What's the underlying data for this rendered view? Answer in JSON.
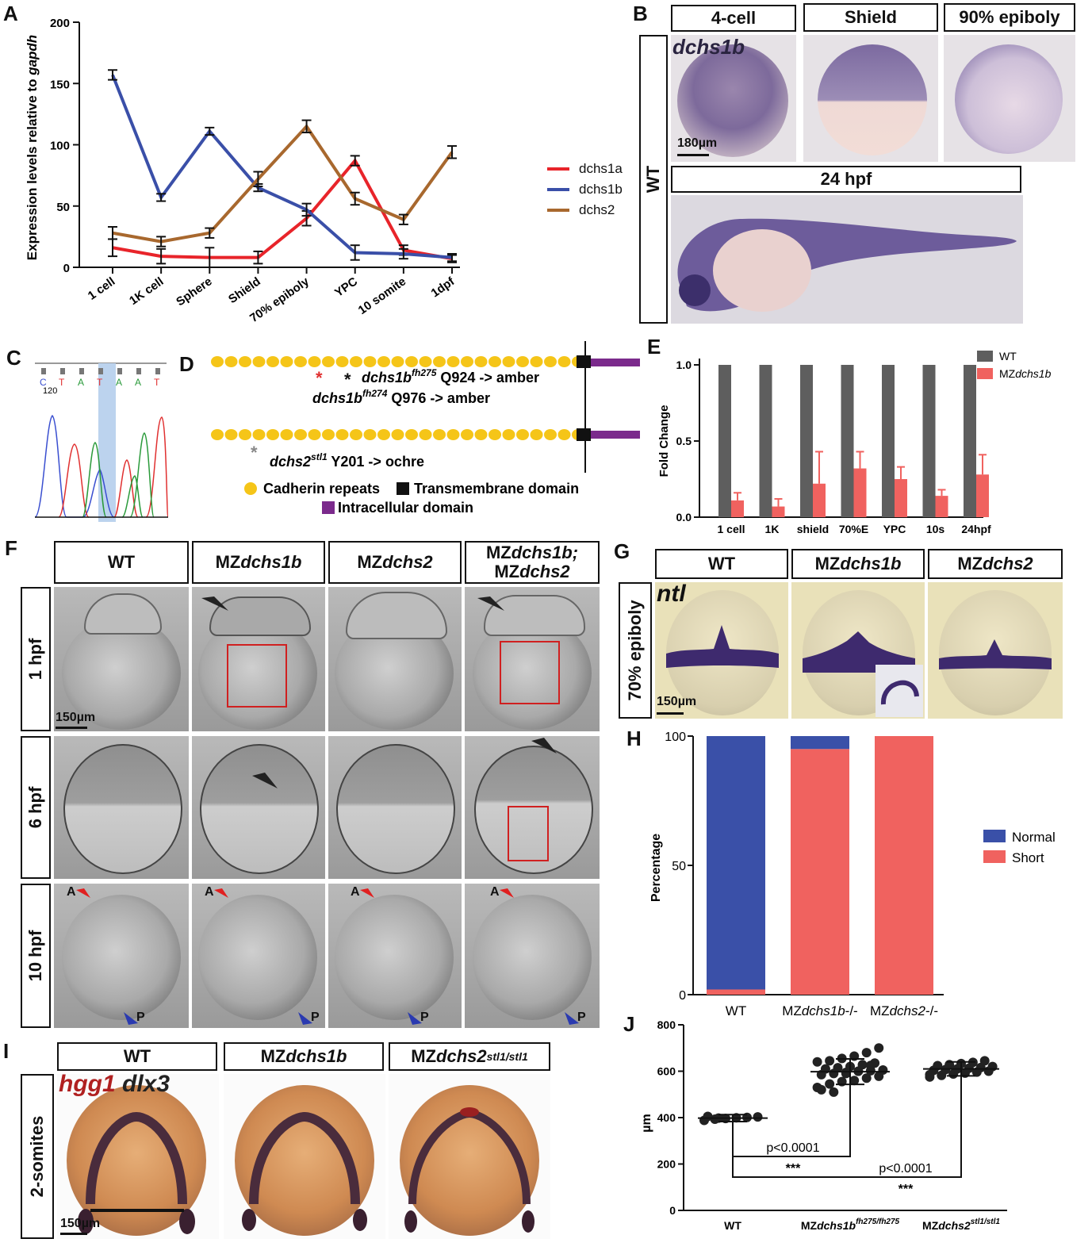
{
  "panels": {
    "A": "A",
    "B": "B",
    "C": "C",
    "D": "D",
    "E": "E",
    "F": "F",
    "G": "G",
    "H": "H",
    "I": "I",
    "J": "J"
  },
  "panelA": {
    "ylabel_prefix": "Expression levels relative to ",
    "ylabel_gene": "gapdh",
    "legend": [
      "dchs1a",
      "dchs1b",
      "dchs2"
    ]
  },
  "panelB": {
    "headers": [
      "4-cell",
      "Shield",
      "90% epiboly"
    ],
    "header_24": "24 hpf",
    "side": "WT",
    "gene": "dchs1b",
    "scale": "180µm"
  },
  "panelC": {
    "trace_labels": [
      "C",
      "T",
      "A",
      "T",
      "A",
      "A",
      "T"
    ],
    "pos": "120"
  },
  "panelD": {
    "mut1_gene": "dchs1b",
    "mut1_sup": "fh275",
    "mut1_change": " Q924 -> amber",
    "mut2_gene": "dchs1b",
    "mut2_sup": "fh274",
    "mut2_change": " Q976 -> amber",
    "mut3_gene": "dchs2",
    "mut3_sup": "stl1",
    "mut3_change": " Y201 -> ochre",
    "legend_cad": "Cadherin repeats",
    "legend_tm": "Transmembrane domain",
    "legend_ic": "Intracellular domain"
  },
  "panelF": {
    "headers": [
      "WT",
      "MZdchs1b",
      "MZdchs2",
      "MZdchs1b;",
      "MZdchs2"
    ],
    "rows": [
      "1 hpf",
      "6 hpf",
      "10 hpf"
    ],
    "scale": "150µm",
    "A": "A",
    "P": "P"
  },
  "panelG": {
    "headers": [
      "WT",
      "MZdchs1b",
      "MZdchs2"
    ],
    "side": "70% epiboly",
    "gene": "ntl",
    "scale": "150µm"
  },
  "panelI": {
    "headers": [
      "WT",
      "MZdchs1b",
      "MZdchs2"
    ],
    "header_sup": "stl1/stl1",
    "side": "2-somites",
    "gene1": "hgg1",
    "gene2": "dlx3",
    "scale": "150µm"
  },
  "colors": {
    "dchs1a": "#e8242a",
    "dchs1b": "#3a4fa8",
    "dchs2": "#a8682e",
    "wt_bar": "#5e5e5e",
    "mz_bar": "#f0625f",
    "normal": "#3a50a8",
    "short": "#f0625f"
  },
  "chart_data": [
    {
      "id": "A",
      "type": "line",
      "categories": [
        "1 cell",
        "1K cell",
        "Sphere",
        "Shield",
        "70% epiboly",
        "YPC",
        "10 somite",
        "1dpf"
      ],
      "ylabel": "Expression levels relative to gapdh",
      "ylim": [
        0,
        200
      ],
      "yticks": [
        0,
        50,
        100,
        150,
        200
      ],
      "series": [
        {
          "name": "dchs1a",
          "values": [
            16,
            9,
            8,
            8,
            40,
            87,
            14,
            7
          ],
          "errors": [
            7,
            6,
            8,
            5,
            6,
            4,
            4,
            3
          ]
        },
        {
          "name": "dchs1b",
          "values": [
            157,
            57,
            111,
            65,
            47,
            12,
            11,
            8
          ],
          "errors": [
            4,
            3,
            3,
            3,
            5,
            6,
            4,
            3
          ]
        },
        {
          "name": "dchs2",
          "values": [
            28,
            21,
            28,
            72,
            115,
            56,
            39,
            94
          ],
          "errors": [
            5,
            4,
            4,
            6,
            5,
            5,
            4,
            5
          ]
        }
      ]
    },
    {
      "id": "E",
      "type": "bar",
      "categories": [
        "1 cell",
        "1K",
        "shield",
        "70%E",
        "YPC",
        "10s",
        "24hpf"
      ],
      "ylabel": "Fold Change",
      "ylim": [
        0,
        1.0
      ],
      "yticks": [
        "0.0",
        "0.5",
        "1.0"
      ],
      "series": [
        {
          "name": "WT",
          "values": [
            1,
            1,
            1,
            1,
            1,
            1,
            1
          ]
        },
        {
          "name": "MZdchs1b",
          "values": [
            0.11,
            0.07,
            0.22,
            0.32,
            0.25,
            0.14,
            0.28
          ],
          "errors": [
            0.05,
            0.05,
            0.21,
            0.11,
            0.08,
            0.04,
            0.13
          ]
        }
      ]
    },
    {
      "id": "H",
      "type": "bar",
      "stacked": true,
      "categories": [
        "WT",
        "MZdchs1b-/-",
        "MZdchs2-/-"
      ],
      "ylabel": "Percentage",
      "ylim": [
        0,
        100
      ],
      "yticks": [
        0,
        50,
        100
      ],
      "series": [
        {
          "name": "Short",
          "values": [
            2,
            95,
            100
          ]
        },
        {
          "name": "Normal",
          "values": [
            98,
            5,
            0
          ]
        }
      ]
    },
    {
      "id": "J",
      "type": "scatter",
      "categories": [
        "WT",
        "MZdchs1b",
        "MZdchs2"
      ],
      "category_sups": [
        "",
        "fh275/fh275",
        "stl1/stl1"
      ],
      "ylabel": "µm",
      "ylim": [
        0,
        800
      ],
      "yticks": [
        0,
        200,
        400,
        600,
        800
      ],
      "means": [
        398,
        598,
        610
      ],
      "sd": [
        15,
        55,
        30
      ],
      "points": [
        [
          388,
          393,
          396,
          399,
          401,
          403,
          405,
          398
        ],
        [
          530,
          545,
          555,
          560,
          570,
          578,
          585,
          590,
          595,
          600,
          602,
          605,
          610,
          615,
          620,
          628,
          635,
          640,
          645,
          655,
          665,
          680,
          700,
          520,
          510,
          590,
          600,
          625
        ],
        [
          575,
          582,
          588,
          592,
          596,
          600,
          604,
          607,
          610,
          613,
          616,
          620,
          624,
          628,
          633,
          638,
          645,
          585
        ]
      ],
      "annotations": [
        "p<0.0001",
        "***",
        "p<0.0001",
        "***"
      ]
    }
  ]
}
